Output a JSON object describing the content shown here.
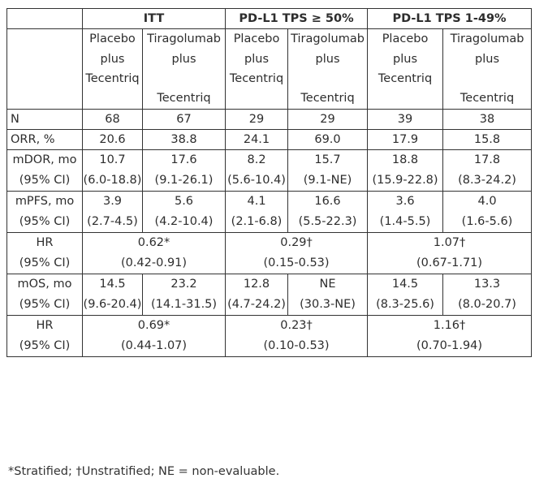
{
  "header": {
    "group1": "ITT",
    "group2": "PD-L1 TPS ≥ 50%",
    "group3": "PD-L1 TPS 1-49%"
  },
  "arms": {
    "placebo": [
      "Placebo",
      "plus",
      "Tecentriq"
    ],
    "tira": [
      "Tiragolumab",
      "plus",
      "",
      "Tecentriq"
    ]
  },
  "rows": {
    "n": {
      "label": "N",
      "vals": [
        "68",
        "67",
        "29",
        "29",
        "39",
        "38"
      ]
    },
    "orr": {
      "label": "ORR, %",
      "vals": [
        "20.6",
        "38.8",
        "24.1",
        "69.0",
        "17.9",
        "15.8"
      ]
    },
    "mdor": {
      "label": "mDOR, mo",
      "ci_label": "(95% CI)",
      "vals": [
        "10.7",
        "17.6",
        "8.2",
        "15.7",
        "18.8",
        "17.8"
      ],
      "ci": [
        "(6.0-18.8)",
        "(9.1-26.1)",
        "(5.6-10.4)",
        "(9.1-NE)",
        "(15.9-22.8)",
        "(8.3-24.2)"
      ]
    },
    "mpfs": {
      "label": "mPFS, mo",
      "ci_label": "(95% CI)",
      "vals": [
        "3.9",
        "5.6",
        "4.1",
        "16.6",
        "3.6",
        "4.0"
      ],
      "ci": [
        "(2.7-4.5)",
        "(4.2-10.4)",
        "(2.1-6.8)",
        "(5.5-22.3)",
        "(1.4-5.5)",
        "(1.6-5.6)"
      ]
    },
    "hr_pfs": {
      "label": "HR",
      "ci_label": "(95% CI)",
      "vals": [
        "0.62*",
        "0.29†",
        "1.07†"
      ],
      "ci": [
        "(0.42-0.91)",
        "(0.15-0.53)",
        "(0.67-1.71)"
      ]
    },
    "mos": {
      "label": "mOS, mo",
      "ci_label": "(95% CI)",
      "vals": [
        "14.5",
        "23.2",
        "12.8",
        "NE",
        "14.5",
        "13.3"
      ],
      "ci": [
        "(9.6-20.4)",
        "(14.1-31.5)",
        "(4.7-24.2)",
        "(30.3-NE)",
        "(8.3-25.6)",
        "(8.0-20.7)"
      ]
    },
    "hr_os": {
      "label": "HR",
      "ci_label": "(95% CI)",
      "vals": [
        "0.69*",
        "0.23†",
        "1.16†"
      ],
      "ci": [
        "(0.44-1.07)",
        "(0.10-0.53)",
        "(0.70-1.94)"
      ]
    }
  },
  "footnote": "*Stratified; †Unstratified; NE = non-evaluable."
}
